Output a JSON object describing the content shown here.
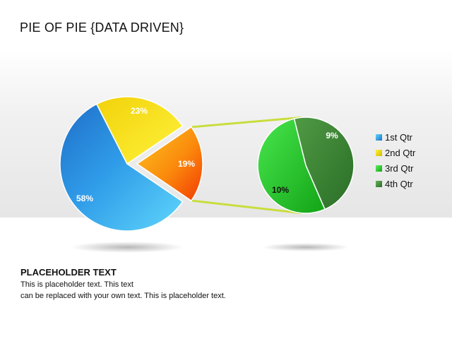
{
  "slide": {
    "title": "PIE OF PIE {DATA DRIVEN}",
    "placeholder_title": "PLACEHOLDER TEXT",
    "placeholder_line1": "This is placeholder text. This text",
    "placeholder_line2": "can be replaced with your own text. This is placeholder text."
  },
  "chart_data": {
    "type": "pie",
    "subtype": "pie-of-pie",
    "legend_position": "right",
    "main_pie": [
      {
        "label": "58%",
        "value": 58,
        "color": "#2f9be8"
      },
      {
        "label": "23%",
        "value": 23,
        "color": "#f7e01a"
      },
      {
        "label": "19%",
        "value": 19,
        "color": "#fb8a0c",
        "exploded": true
      }
    ],
    "secondary_pie": [
      {
        "label": "10%",
        "value": 10,
        "color": "#2fc53a"
      },
      {
        "label": "9%",
        "value": 9,
        "color": "#3f8a3a"
      }
    ],
    "legend": [
      {
        "label": "1st Qtr",
        "color": "#2f9be8"
      },
      {
        "label": "2nd Qtr",
        "color": "#f7e01a"
      },
      {
        "label": "3rd Qtr",
        "color": "#2fc53a"
      },
      {
        "label": "4th Qtr",
        "color": "#3f8a3a"
      }
    ],
    "connector_color": "#c8dd3a"
  }
}
